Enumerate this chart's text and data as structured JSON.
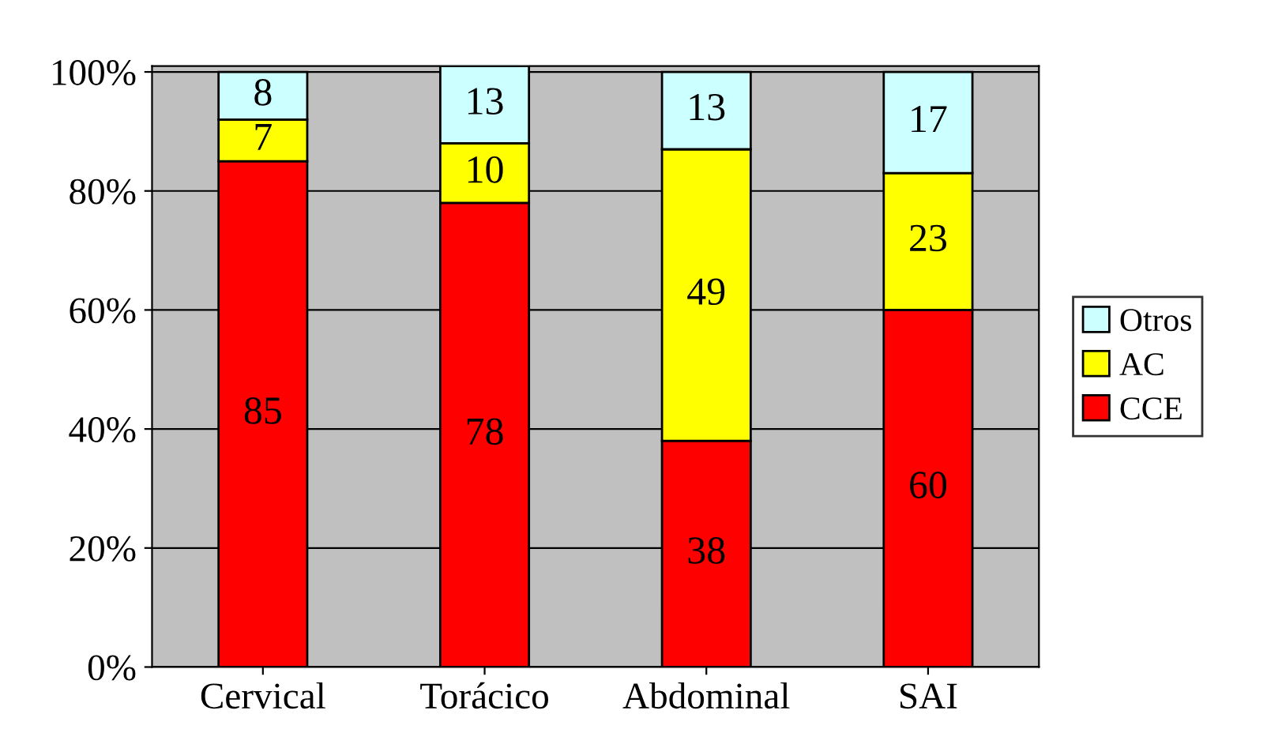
{
  "chart_data": {
    "type": "bar",
    "stacked": true,
    "categories": [
      "Cervical",
      "Torácico",
      "Abdominal",
      "SAI"
    ],
    "series": [
      {
        "name": "CCE",
        "color": "#ff0000",
        "values": [
          85,
          78,
          38,
          60
        ]
      },
      {
        "name": "AC",
        "color": "#ffff00",
        "values": [
          7,
          10,
          49,
          23
        ]
      },
      {
        "name": "Otros",
        "color": "#ccffff",
        "values": [
          8,
          13,
          13,
          17
        ]
      }
    ],
    "data_labels": true,
    "ylim": [
      0,
      101
    ],
    "yticks": [
      {
        "value": 0,
        "label": "0%"
      },
      {
        "value": 20,
        "label": "20%"
      },
      {
        "value": 40,
        "label": "40%"
      },
      {
        "value": 60,
        "label": "60%"
      },
      {
        "value": 80,
        "label": "80%"
      },
      {
        "value": 100,
        "label": "100%"
      }
    ],
    "grid": "y",
    "legend": "right"
  }
}
